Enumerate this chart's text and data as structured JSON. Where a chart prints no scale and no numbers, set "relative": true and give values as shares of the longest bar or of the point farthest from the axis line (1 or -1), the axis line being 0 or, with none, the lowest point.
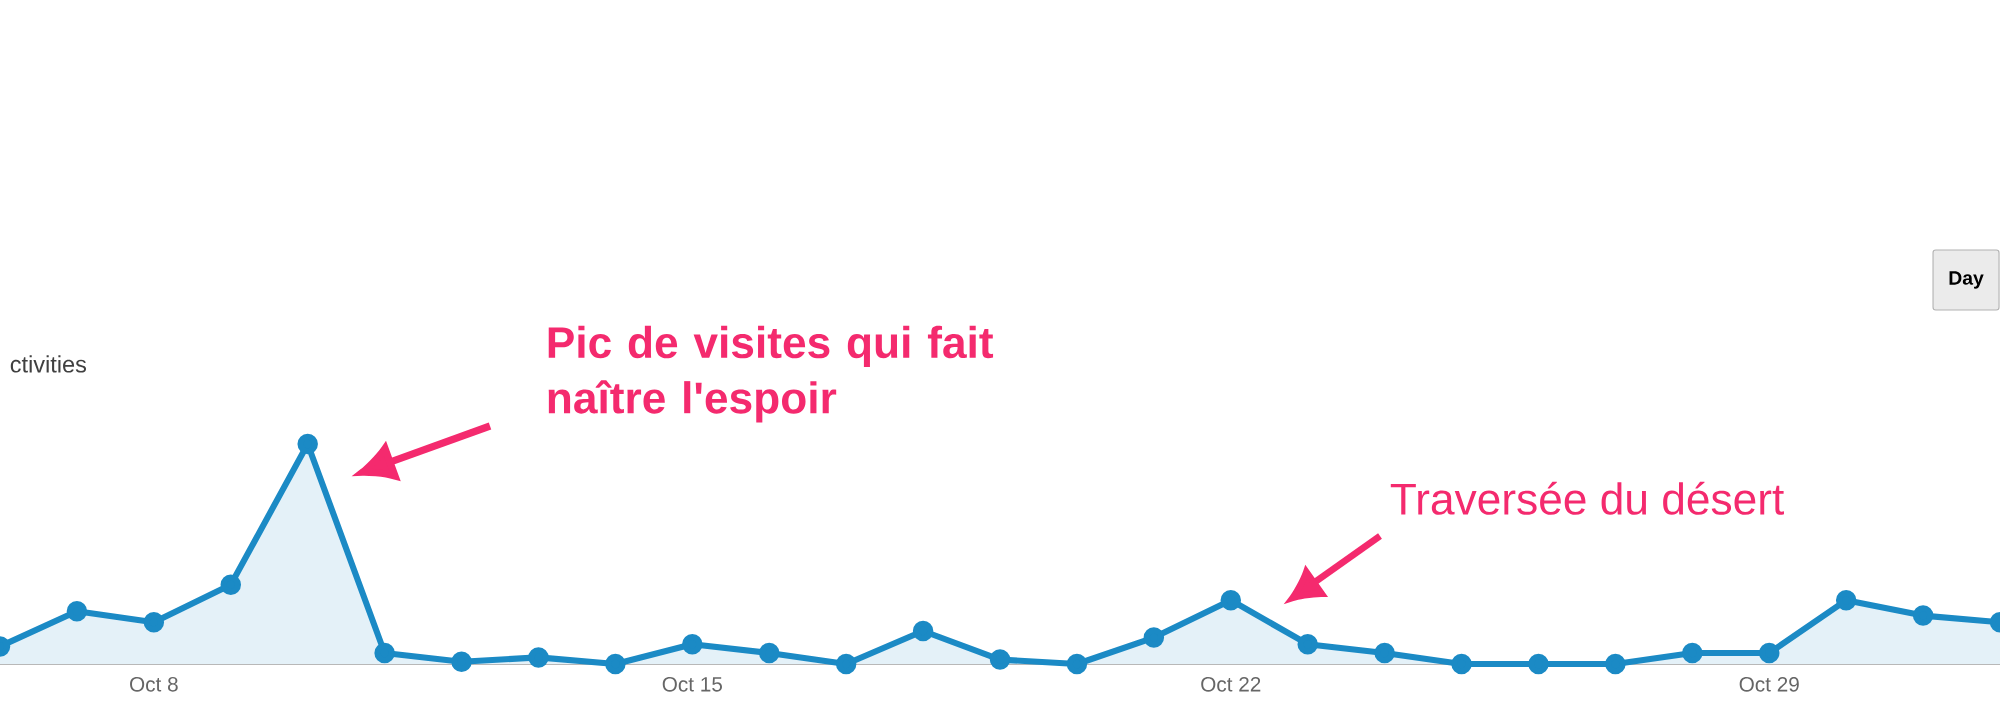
{
  "chart_data": {
    "type": "area",
    "relative": true,
    "categories": [
      null,
      null,
      "Oct 8",
      null,
      null,
      null,
      null,
      null,
      null,
      "Oct 15",
      null,
      null,
      null,
      null,
      null,
      null,
      "Oct 22",
      null,
      null,
      null,
      null,
      null,
      null,
      "Oct 29",
      null,
      null,
      null
    ],
    "series": [
      {
        "color": "#1b8ac5",
        "values": [
          0.08,
          0.24,
          0.19,
          0.36,
          1,
          0.05,
          0.01,
          0.03,
          0,
          0.09,
          0.05,
          0,
          0.15,
          0.02,
          0,
          0.12,
          0.29,
          0.09,
          0.05,
          0,
          0,
          0,
          0.05,
          0.05,
          0.29,
          0.22,
          0.19
        ]
      }
    ],
    "marker": "circle",
    "annotations": [
      "Pic de visites qui fait naître l'espoir",
      "Traversée du désert",
      "ctivities",
      "Day"
    ]
  }
}
